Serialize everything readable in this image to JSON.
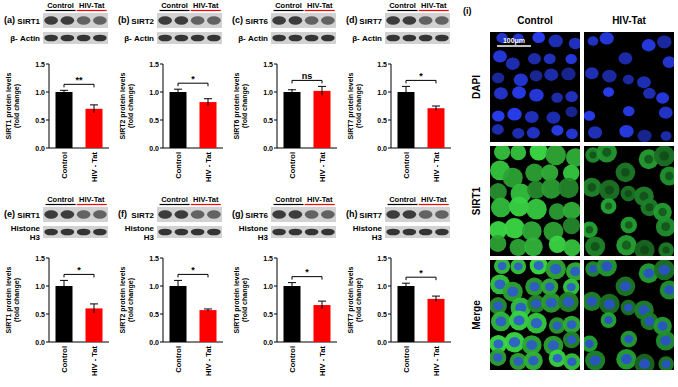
{
  "chart_data": [
    {
      "type": "bar",
      "title": "(a)",
      "blot": {
        "lanes": [
          "Control",
          "HIV-Tat"
        ],
        "rows": [
          [
            "SIRT1"
          ],
          [
            "β- Actin"
          ]
        ]
      },
      "y_label": [
        "SIRT1 protein levels",
        "(fold change)"
      ],
      "categories": [
        "Control",
        "HIV - Tat"
      ],
      "values": [
        1.0,
        0.7
      ],
      "errors": [
        0.03,
        0.07
      ],
      "colors": [
        "#000000",
        "#ff0000"
      ],
      "ylim": [
        0,
        1.5
      ],
      "yticks": [
        {
          "value": 0,
          "label": "0.0"
        },
        0.5,
        {
          "value": 1,
          "label": "1.0"
        },
        1.5
      ],
      "significance": "**"
    },
    {
      "type": "bar",
      "title": "(b)",
      "blot": {
        "lanes": [
          "Control",
          "HIV-Tat"
        ],
        "rows": [
          [
            "SIRT2"
          ],
          [
            "β- Actin"
          ]
        ]
      },
      "y_label": [
        "SIRT2 protein levels",
        "(fold change)"
      ],
      "categories": [
        "Control",
        "HIV - Tat"
      ],
      "values": [
        1.0,
        0.82
      ],
      "errors": [
        0.05,
        0.06
      ],
      "colors": [
        "#000000",
        "#ff0000"
      ],
      "ylim": [
        0,
        1.5
      ],
      "yticks": [
        {
          "value": 0,
          "label": "0.0"
        },
        0.5,
        {
          "value": 1,
          "label": "1.0"
        },
        1.5
      ],
      "significance": "*"
    },
    {
      "type": "bar",
      "title": "(c)",
      "blot": {
        "lanes": [
          "Control",
          "HIV-Tat"
        ],
        "rows": [
          [
            "SIRT6"
          ],
          [
            "β- Actin"
          ]
        ]
      },
      "y_label": [
        "SIRT6 protein levels",
        "(fold change)"
      ],
      "categories": [
        "Control",
        "HIV - Tat"
      ],
      "values": [
        1.0,
        1.02
      ],
      "errors": [
        0.04,
        0.08
      ],
      "colors": [
        "#000000",
        "#ff0000"
      ],
      "ylim": [
        0,
        1.5
      ],
      "yticks": [
        {
          "value": 0,
          "label": "0.0"
        },
        0.5,
        {
          "value": 1,
          "label": "1.0"
        },
        1.5
      ],
      "significance": "ns"
    },
    {
      "type": "bar",
      "title": "(d)",
      "blot": {
        "lanes": [
          "Control",
          "HIV-Tat"
        ],
        "rows": [
          [
            "SIRT7"
          ],
          [
            "β- Actin"
          ]
        ]
      },
      "y_label": [
        "SIRT7 protein levels",
        "(fold change)"
      ],
      "categories": [
        "Control",
        "HIV - Tat"
      ],
      "values": [
        1.0,
        0.71
      ],
      "errors": [
        0.1,
        0.04
      ],
      "colors": [
        "#000000",
        "#ff0000"
      ],
      "ylim": [
        0,
        1.5
      ],
      "yticks": [
        {
          "value": 0,
          "label": "0.0"
        },
        0.5,
        {
          "value": 1,
          "label": "1.0"
        },
        1.5
      ],
      "significance": "*"
    },
    {
      "type": "bar",
      "title": "(e)",
      "blot": {
        "lanes": [
          "Control",
          "HIV-Tat"
        ],
        "rows": [
          [
            "SIRT1"
          ],
          [
            "Histone",
            "H3"
          ]
        ]
      },
      "y_label": [
        "SIRT1 protein levels",
        "(fold change)"
      ],
      "categories": [
        "Control",
        "HIV - Tat"
      ],
      "values": [
        1.0,
        0.6
      ],
      "errors": [
        0.1,
        0.08
      ],
      "colors": [
        "#000000",
        "#ff0000"
      ],
      "ylim": [
        0,
        1.5
      ],
      "yticks": [
        {
          "value": 0,
          "label": "0.0"
        },
        0.5,
        {
          "value": 1,
          "label": "1.0"
        },
        1.5
      ],
      "significance": "*"
    },
    {
      "type": "bar",
      "title": "(f)",
      "blot": {
        "lanes": [
          "Control",
          "HIV-Tat"
        ],
        "rows": [
          [
            "SIRT2"
          ],
          [
            "Histone",
            "H3"
          ]
        ]
      },
      "y_label": [
        "SIRT2 protein levels",
        "(fold change)"
      ],
      "categories": [
        "Control",
        "HIV - Tat"
      ],
      "values": [
        1.0,
        0.57
      ],
      "errors": [
        0.1,
        0.02
      ],
      "colors": [
        "#000000",
        "#ff0000"
      ],
      "ylim": [
        0,
        1.5
      ],
      "yticks": [
        {
          "value": 0,
          "label": "0.0"
        },
        0.5,
        {
          "value": 1,
          "label": "1.0"
        },
        1.5
      ],
      "significance": "*"
    },
    {
      "type": "bar",
      "title": "(g)",
      "blot": {
        "lanes": [
          "Control",
          "HIV-Tat"
        ],
        "rows": [
          [
            "SIRT6"
          ],
          [
            "Histone",
            "H3"
          ]
        ]
      },
      "y_label": [
        "SIRT6 protein levels",
        "(fold change)"
      ],
      "categories": [
        "Control",
        "HIV - Tat"
      ],
      "values": [
        1.0,
        0.66
      ],
      "errors": [
        0.06,
        0.07
      ],
      "colors": [
        "#000000",
        "#ff0000"
      ],
      "ylim": [
        0,
        1.5
      ],
      "yticks": [
        {
          "value": 0,
          "label": "0.0"
        },
        0.5,
        {
          "value": 1,
          "label": "1.0"
        },
        1.5
      ],
      "significance": "*"
    },
    {
      "type": "bar",
      "title": "(h)",
      "blot": {
        "lanes": [
          "Control",
          "HIV-Tat"
        ],
        "rows": [
          [
            "SIRT7"
          ],
          [
            "Histone",
            "H3"
          ]
        ]
      },
      "y_label": [
        "SIRT7 protein levels",
        "(fold change)"
      ],
      "categories": [
        "Control",
        "HIV - Tat"
      ],
      "values": [
        1.0,
        0.77
      ],
      "errors": [
        0.05,
        0.05
      ],
      "colors": [
        "#000000",
        "#ff0000"
      ],
      "ylim": [
        0,
        1.5
      ],
      "yticks": [
        {
          "value": 0,
          "label": "0.0"
        },
        0.5,
        {
          "value": 1,
          "label": "1.0"
        },
        1.5
      ],
      "significance": "*"
    }
  ],
  "image_panel": {
    "label": "(i)",
    "columns": [
      "Control",
      "HIV-Tat"
    ],
    "rows": [
      "DAPI",
      "SIRT1",
      "Merge"
    ],
    "scale_bar": "100μm"
  }
}
